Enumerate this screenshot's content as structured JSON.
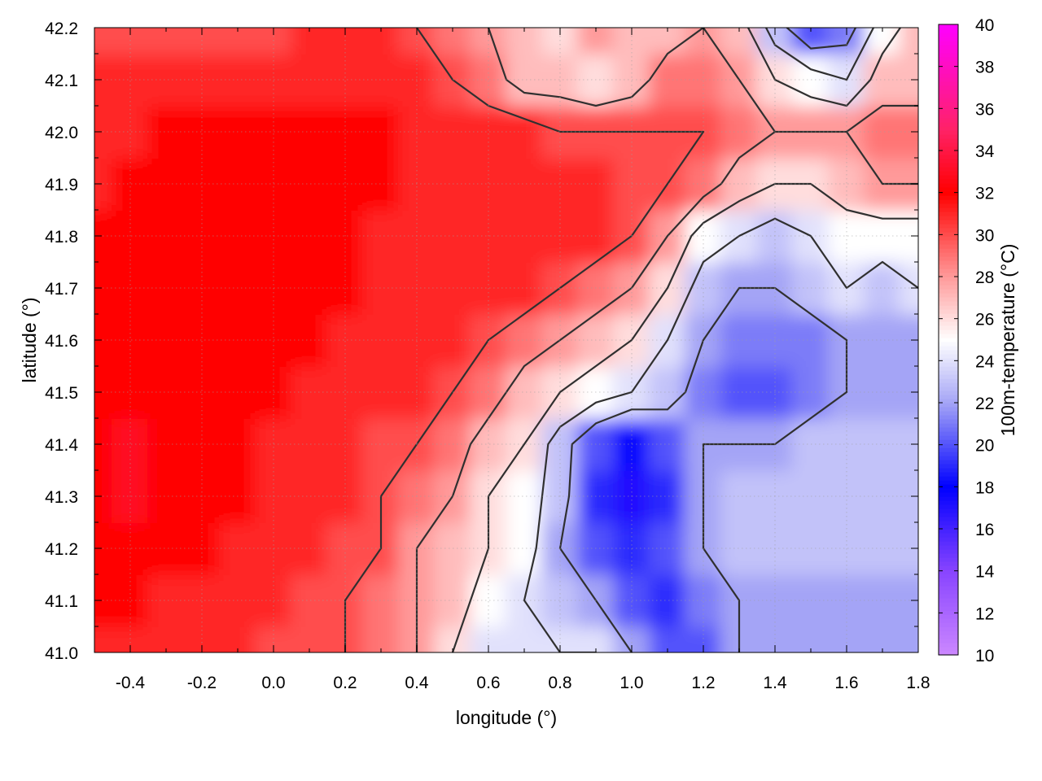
{
  "chart_data": {
    "type": "heatmap",
    "title": "",
    "xlabel": "longitude (°)",
    "ylabel": "latitude (°)",
    "xlim": [
      -0.5,
      1.8
    ],
    "ylim": [
      41.0,
      42.2
    ],
    "x_ticks": [
      "-0.4",
      "-0.2",
      "0.0",
      "0.2",
      "0.4",
      "0.6",
      "0.8",
      "1.0",
      "1.2",
      "1.4",
      "1.6",
      "1.8"
    ],
    "x_tick_values": [
      -0.4,
      -0.2,
      0.0,
      0.2,
      0.4,
      0.6,
      0.8,
      1.0,
      1.2,
      1.4,
      1.6,
      1.8
    ],
    "y_ticks": [
      "41.0",
      "41.1",
      "41.2",
      "41.3",
      "41.4",
      "41.5",
      "41.6",
      "41.7",
      "41.8",
      "41.9",
      "42.0",
      "42.1",
      "42.2"
    ],
    "y_tick_values": [
      41.0,
      41.1,
      41.2,
      41.3,
      41.4,
      41.5,
      41.6,
      41.7,
      41.8,
      41.9,
      42.0,
      42.1,
      42.2
    ],
    "grid": true,
    "colorbar": {
      "label": "100m-temperature (°C)",
      "range": [
        10,
        40
      ],
      "ticks": [
        "10",
        "12",
        "14",
        "16",
        "18",
        "20",
        "22",
        "24",
        "26",
        "28",
        "30",
        "32",
        "34",
        "36",
        "38",
        "40"
      ],
      "tick_values": [
        10,
        12,
        14,
        16,
        18,
        20,
        22,
        24,
        26,
        28,
        30,
        32,
        34,
        36,
        38,
        40
      ],
      "colormap": [
        {
          "value": 10,
          "color": "#cc88ff"
        },
        {
          "value": 14,
          "color": "#8844ff"
        },
        {
          "value": 18,
          "color": "#0000ff"
        },
        {
          "value": 22,
          "color": "#a4a4f6"
        },
        {
          "value": 25,
          "color": "#ffffff"
        },
        {
          "value": 28,
          "color": "#ff9a9a"
        },
        {
          "value": 32,
          "color": "#ff0000"
        },
        {
          "value": 35,
          "color": "#ff2266"
        },
        {
          "value": 40,
          "color": "#ff00ff"
        }
      ]
    },
    "temperature_field": {
      "x_step": 0.1,
      "y_step": 0.1,
      "x_start": -0.5,
      "y_start": 41.0,
      "values": [
        [
          31,
          31,
          31,
          31,
          31,
          30,
          30,
          30,
          29,
          28,
          26,
          24,
          24,
          24,
          24,
          22,
          20,
          20,
          22,
          22,
          22,
          22,
          22,
          22
        ],
        [
          32,
          32,
          31,
          31,
          31,
          31,
          30,
          30,
          29,
          28,
          27,
          25,
          24,
          23,
          22,
          20,
          19,
          21,
          22,
          22,
          22,
          22,
          22,
          22
        ],
        [
          32,
          32,
          32,
          32,
          31,
          31,
          31,
          30,
          30,
          28,
          27,
          26,
          25,
          22,
          20,
          19,
          20,
          22,
          23,
          23,
          23,
          23,
          23,
          23
        ],
        [
          32,
          33,
          32,
          32,
          32,
          31,
          31,
          31,
          30,
          29,
          28,
          26,
          25,
          23,
          19,
          17,
          19,
          22,
          23,
          23,
          23,
          23,
          23,
          23
        ],
        [
          32,
          33,
          32,
          32,
          32,
          31,
          31,
          31,
          30,
          30,
          29,
          27,
          26,
          23,
          20,
          18,
          20,
          22,
          22,
          22,
          23,
          23,
          23,
          23
        ],
        [
          32,
          32,
          32,
          32,
          32,
          32,
          31,
          31,
          31,
          31,
          30,
          29,
          27,
          26,
          25,
          24,
          23,
          21,
          20,
          20,
          21,
          22,
          22,
          22
        ],
        [
          32,
          32,
          32,
          32,
          32,
          32,
          32,
          31,
          31,
          31,
          31,
          30,
          29,
          28,
          27,
          26,
          24,
          22,
          21,
          21,
          21,
          22,
          22,
          22
        ],
        [
          32,
          32,
          32,
          32,
          32,
          32,
          32,
          32,
          31,
          31,
          31,
          31,
          31,
          30,
          29,
          28,
          26,
          23,
          22,
          22,
          23,
          24,
          23,
          24
        ],
        [
          32,
          32,
          32,
          32,
          32,
          32,
          32,
          32,
          31,
          31,
          31,
          31,
          31,
          31,
          31,
          30,
          28,
          25,
          24,
          23,
          24,
          25,
          25,
          25
        ],
        [
          31,
          32,
          32,
          32,
          32,
          32,
          32,
          32,
          32,
          31,
          31,
          31,
          31,
          31,
          31,
          30,
          30,
          29,
          27,
          26,
          26,
          27,
          28,
          28
        ],
        [
          31,
          31,
          32,
          32,
          32,
          32,
          32,
          32,
          32,
          31,
          31,
          31,
          31,
          30,
          30,
          30,
          30,
          30,
          29,
          28,
          28,
          28,
          29,
          29
        ],
        [
          31,
          31,
          31,
          31,
          31,
          31,
          31,
          31,
          31,
          31,
          30,
          29,
          27,
          27,
          26,
          27,
          29,
          29,
          28,
          26,
          25,
          24,
          27,
          27
        ],
        [
          30,
          30,
          30,
          30,
          30,
          30,
          31,
          31,
          31,
          30,
          29,
          28,
          27,
          26,
          28,
          27,
          27,
          28,
          27,
          23,
          20,
          21,
          25,
          27
        ]
      ]
    },
    "contour_levels": [
      22,
      24,
      26,
      28,
      30
    ]
  }
}
